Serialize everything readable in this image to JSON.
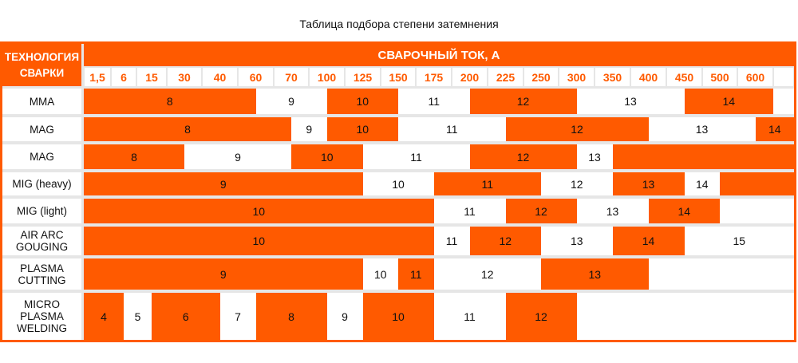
{
  "title": "Таблица подбора степени затемнения",
  "colors": {
    "accent": "#ff5a00",
    "light": "#ffffff",
    "grid": "#e6e6e6"
  },
  "chart_data": {
    "type": "table",
    "title": "Таблица подбора степени затемнения",
    "row_header": "ТЕХНОЛОГИЯ СВАРКИ",
    "column_header": "СВАРОЧНЫЙ ТОК, А",
    "current_columns": [
      "1,5",
      "6",
      "15",
      "30",
      "40",
      "60",
      "70",
      "100",
      "125",
      "150",
      "175",
      "200",
      "225",
      "250",
      "300",
      "350",
      "400",
      "450",
      "500",
      "600",
      ""
    ],
    "segment_range_unit": "column position (0 = left edge of 1,5 column; boundaries fall on column middles)",
    "rows": [
      {
        "label": "MMA",
        "segments": [
          {
            "shade": "8",
            "from": 0,
            "to": 5.5,
            "fill": "accent"
          },
          {
            "shade": "9",
            "from": 5.5,
            "to": 7.5,
            "fill": "light"
          },
          {
            "shade": "10",
            "from": 7.5,
            "to": 9.5,
            "fill": "accent"
          },
          {
            "shade": "11",
            "from": 9.5,
            "to": 11.5,
            "fill": "light"
          },
          {
            "shade": "12",
            "from": 11.5,
            "to": 14.5,
            "fill": "accent"
          },
          {
            "shade": "13",
            "from": 14.5,
            "to": 17.5,
            "fill": "light"
          },
          {
            "shade": "14",
            "from": 17.5,
            "to": 20,
            "fill": "accent"
          },
          {
            "shade": "",
            "from": 20,
            "to": 21,
            "fill": "light"
          }
        ]
      },
      {
        "label": "MAG",
        "segments": [
          {
            "shade": "8",
            "from": 0,
            "to": 6.5,
            "fill": "accent"
          },
          {
            "shade": "9",
            "from": 6.5,
            "to": 7.5,
            "fill": "light"
          },
          {
            "shade": "10",
            "from": 7.5,
            "to": 9.5,
            "fill": "accent"
          },
          {
            "shade": "11",
            "from": 9.5,
            "to": 12.5,
            "fill": "light"
          },
          {
            "shade": "12",
            "from": 12.5,
            "to": 16.5,
            "fill": "accent"
          },
          {
            "shade": "13",
            "from": 16.5,
            "to": 19.5,
            "fill": "light"
          },
          {
            "shade": "14",
            "from": 19.5,
            "to": 21,
            "fill": "accent"
          }
        ]
      },
      {
        "label": "MAG",
        "segments": [
          {
            "shade": "8",
            "from": 0,
            "to": 3.5,
            "fill": "accent"
          },
          {
            "shade": "9",
            "from": 3.5,
            "to": 6.5,
            "fill": "light"
          },
          {
            "shade": "10",
            "from": 6.5,
            "to": 8.5,
            "fill": "accent"
          },
          {
            "shade": "11",
            "from": 8.5,
            "to": 11.5,
            "fill": "light"
          },
          {
            "shade": "12",
            "from": 11.5,
            "to": 14.5,
            "fill": "accent"
          },
          {
            "shade": "13",
            "from": 14.5,
            "to": 15.5,
            "fill": "light"
          },
          {
            "shade": "",
            "from": 15.5,
            "to": 21,
            "fill": "accent"
          }
        ]
      },
      {
        "label": "MIG (heavy)",
        "segments": [
          {
            "shade": "9",
            "from": 0,
            "to": 8.5,
            "fill": "accent"
          },
          {
            "shade": "10",
            "from": 8.5,
            "to": 10.5,
            "fill": "light"
          },
          {
            "shade": "11",
            "from": 10.5,
            "to": 13.5,
            "fill": "accent"
          },
          {
            "shade": "12",
            "from": 13.5,
            "to": 15.5,
            "fill": "light"
          },
          {
            "shade": "13",
            "from": 15.5,
            "to": 17.5,
            "fill": "accent"
          },
          {
            "shade": "14",
            "from": 17.5,
            "to": 18.5,
            "fill": "light"
          },
          {
            "shade": "",
            "from": 18.5,
            "to": 21,
            "fill": "accent"
          }
        ]
      },
      {
        "label": "MIG (light)",
        "segments": [
          {
            "shade": "10",
            "from": 0,
            "to": 10.5,
            "fill": "accent"
          },
          {
            "shade": "11",
            "from": 10.5,
            "to": 12.5,
            "fill": "light"
          },
          {
            "shade": "12",
            "from": 12.5,
            "to": 14.5,
            "fill": "accent"
          },
          {
            "shade": "13",
            "from": 14.5,
            "to": 16.5,
            "fill": "light"
          },
          {
            "shade": "14",
            "from": 16.5,
            "to": 18.5,
            "fill": "accent"
          },
          {
            "shade": "",
            "from": 18.5,
            "to": 21,
            "fill": "light"
          }
        ]
      },
      {
        "label": "AIR ARC\nGOUGING",
        "segments": [
          {
            "shade": "10",
            "from": 0,
            "to": 10.5,
            "fill": "accent"
          },
          {
            "shade": "11",
            "from": 10.5,
            "to": 11.5,
            "fill": "light"
          },
          {
            "shade": "12",
            "from": 11.5,
            "to": 13.5,
            "fill": "accent"
          },
          {
            "shade": "13",
            "from": 13.5,
            "to": 15.5,
            "fill": "light"
          },
          {
            "shade": "14",
            "from": 15.5,
            "to": 17.5,
            "fill": "accent"
          },
          {
            "shade": "15",
            "from": 17.5,
            "to": 21,
            "fill": "light"
          }
        ]
      },
      {
        "label": "PLASMA\nCUTTING",
        "segments": [
          {
            "shade": "9",
            "from": 0,
            "to": 8.5,
            "fill": "accent"
          },
          {
            "shade": "10",
            "from": 8.5,
            "to": 9.5,
            "fill": "light"
          },
          {
            "shade": "11",
            "from": 9.5,
            "to": 10.5,
            "fill": "accent"
          },
          {
            "shade": "12",
            "from": 10.5,
            "to": 13.5,
            "fill": "light"
          },
          {
            "shade": "13",
            "from": 13.5,
            "to": 16.5,
            "fill": "accent"
          },
          {
            "shade": "",
            "from": 16.5,
            "to": 21,
            "fill": "light"
          }
        ]
      },
      {
        "label": "MICRO\nPLASMA\nWELDING",
        "segments": [
          {
            "shade": "4",
            "from": 0,
            "to": 1.5,
            "fill": "accent"
          },
          {
            "shade": "5",
            "from": 1.5,
            "to": 2.5,
            "fill": "light"
          },
          {
            "shade": "6",
            "from": 2.5,
            "to": 4.5,
            "fill": "accent"
          },
          {
            "shade": "7",
            "from": 4.5,
            "to": 5.5,
            "fill": "light"
          },
          {
            "shade": "8",
            "from": 5.5,
            "to": 7.5,
            "fill": "accent"
          },
          {
            "shade": "9",
            "from": 7.5,
            "to": 8.5,
            "fill": "light"
          },
          {
            "shade": "10",
            "from": 8.5,
            "to": 10.5,
            "fill": "accent"
          },
          {
            "shade": "11",
            "from": 10.5,
            "to": 12.5,
            "fill": "light"
          },
          {
            "shade": "12",
            "from": 12.5,
            "to": 14.5,
            "fill": "accent"
          },
          {
            "shade": "",
            "from": 14.5,
            "to": 21,
            "fill": "light"
          }
        ]
      }
    ]
  }
}
